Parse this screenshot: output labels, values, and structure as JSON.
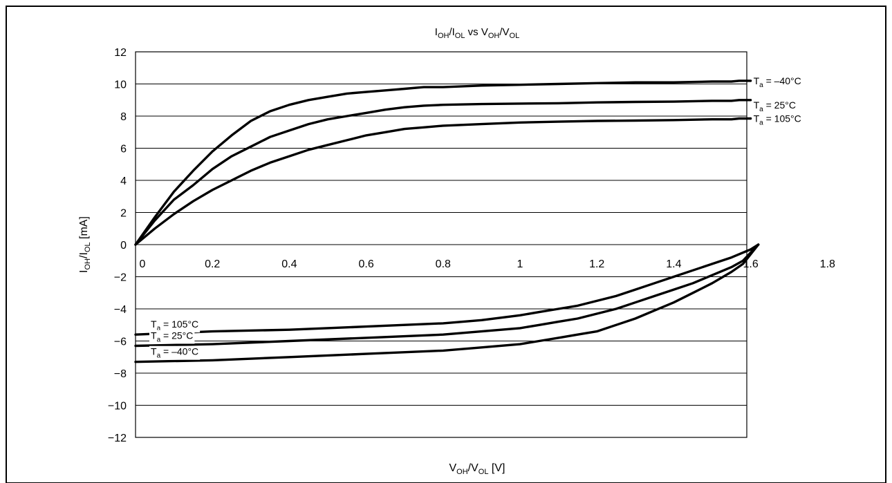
{
  "chart_data": {
    "type": "line",
    "title": {
      "base1": "I",
      "sub1": "OH",
      "mid1": "/I",
      "sub2": "OL",
      "mid2": " vs V",
      "sub3": "OH",
      "mid3": "/V",
      "sub4": "OL"
    },
    "xlabel": {
      "base1": "V",
      "sub1": "OH",
      "mid1": "/V",
      "sub2": "OL",
      "tail": " [V]"
    },
    "ylabel": {
      "base1": "I",
      "sub1": "OH",
      "mid1": "/I",
      "sub2": "OL",
      "tail": " [mA]"
    },
    "xlim": [
      0,
      1.8
    ],
    "ylim": [
      -12,
      12
    ],
    "x_ticks": [
      0,
      0.2,
      0.4,
      0.6,
      0.8,
      1.0,
      1.2,
      1.4,
      1.6,
      1.8
    ],
    "x_tick_labels": [
      "0",
      "0.2",
      "0.4",
      "0.6",
      "0.8",
      "1",
      "1.2",
      "1.4",
      "1.6",
      "1.8"
    ],
    "y_ticks": [
      12,
      10,
      8,
      6,
      4,
      2,
      0,
      -2,
      -4,
      -6,
      -8,
      -10,
      -12
    ],
    "y_tick_labels": [
      "12",
      "10",
      "8",
      "6",
      "4",
      "2",
      "0",
      "−2",
      "−4",
      "−6",
      "−8",
      "−10",
      "−12"
    ],
    "grid": true,
    "series": [
      {
        "name": {
          "base": "T",
          "sub": "a",
          "tail": " = –40°C"
        },
        "branch": "IOH",
        "x": [
          0,
          0.05,
          0.1,
          0.15,
          0.2,
          0.25,
          0.3,
          0.35,
          0.4,
          0.45,
          0.5,
          0.55,
          0.6,
          0.65,
          0.7,
          0.75,
          0.8,
          0.9,
          1.0,
          1.1,
          1.2,
          1.3,
          1.4,
          1.5,
          1.55,
          1.57,
          1.6
        ],
        "y": [
          0,
          1.7,
          3.3,
          4.6,
          5.8,
          6.8,
          7.7,
          8.3,
          8.7,
          9.0,
          9.2,
          9.4,
          9.5,
          9.6,
          9.7,
          9.8,
          9.8,
          9.9,
          9.95,
          10.0,
          10.05,
          10.1,
          10.1,
          10.15,
          10.15,
          10.2,
          10.2
        ]
      },
      {
        "name": {
          "base": "T",
          "sub": "a",
          "tail": " = 25°C"
        },
        "branch": "IOH",
        "x": [
          0,
          0.05,
          0.1,
          0.15,
          0.2,
          0.25,
          0.3,
          0.35,
          0.4,
          0.45,
          0.5,
          0.55,
          0.6,
          0.65,
          0.7,
          0.75,
          0.8,
          0.9,
          1.0,
          1.1,
          1.2,
          1.3,
          1.4,
          1.5,
          1.55,
          1.57,
          1.6
        ],
        "y": [
          0,
          1.5,
          2.8,
          3.7,
          4.7,
          5.5,
          6.1,
          6.7,
          7.1,
          7.5,
          7.8,
          8.0,
          8.2,
          8.4,
          8.55,
          8.65,
          8.7,
          8.75,
          8.78,
          8.8,
          8.85,
          8.88,
          8.9,
          8.95,
          8.95,
          9.0,
          9.0
        ]
      },
      {
        "name": {
          "base": "T",
          "sub": "a",
          "tail": " = 105°C"
        },
        "branch": "IOH",
        "x": [
          0,
          0.05,
          0.1,
          0.15,
          0.2,
          0.25,
          0.3,
          0.35,
          0.4,
          0.45,
          0.5,
          0.55,
          0.6,
          0.65,
          0.7,
          0.75,
          0.8,
          0.9,
          1.0,
          1.1,
          1.2,
          1.3,
          1.4,
          1.5,
          1.55,
          1.57,
          1.6
        ],
        "y": [
          0,
          1.0,
          1.9,
          2.7,
          3.4,
          4.0,
          4.6,
          5.1,
          5.5,
          5.9,
          6.2,
          6.5,
          6.8,
          7.0,
          7.2,
          7.3,
          7.4,
          7.5,
          7.6,
          7.65,
          7.7,
          7.72,
          7.75,
          7.8,
          7.8,
          7.85,
          7.85
        ]
      },
      {
        "name": {
          "base": "T",
          "sub": "a",
          "tail": " = –40°C"
        },
        "branch": "IOL",
        "x": [
          0,
          0.2,
          0.4,
          0.6,
          0.8,
          0.9,
          1.0,
          1.05,
          1.1,
          1.15,
          1.2,
          1.25,
          1.3,
          1.35,
          1.4,
          1.45,
          1.5,
          1.55,
          1.58,
          1.6,
          1.62
        ],
        "y": [
          -7.3,
          -7.2,
          -7.0,
          -6.8,
          -6.6,
          -6.4,
          -6.2,
          -6.0,
          -5.8,
          -5.6,
          -5.4,
          -5.0,
          -4.6,
          -4.1,
          -3.6,
          -3.0,
          -2.4,
          -1.7,
          -1.2,
          -0.6,
          0
        ]
      },
      {
        "name": {
          "base": "T",
          "sub": "a",
          "tail": " = 25°C"
        },
        "branch": "IOL",
        "x": [
          0,
          0.2,
          0.4,
          0.6,
          0.8,
          0.9,
          1.0,
          1.05,
          1.1,
          1.15,
          1.2,
          1.25,
          1.3,
          1.35,
          1.4,
          1.45,
          1.5,
          1.55,
          1.58,
          1.6,
          1.62
        ],
        "y": [
          -6.3,
          -6.2,
          -6.0,
          -5.8,
          -5.6,
          -5.4,
          -5.2,
          -5.0,
          -4.8,
          -4.6,
          -4.3,
          -4.0,
          -3.6,
          -3.2,
          -2.8,
          -2.4,
          -1.9,
          -1.4,
          -1.0,
          -0.5,
          0
        ]
      },
      {
        "name": {
          "base": "T",
          "sub": "a",
          "tail": " = 105°C"
        },
        "branch": "IOL",
        "x": [
          0,
          0.2,
          0.4,
          0.6,
          0.8,
          0.9,
          1.0,
          1.05,
          1.1,
          1.15,
          1.2,
          1.25,
          1.3,
          1.35,
          1.4,
          1.45,
          1.5,
          1.55,
          1.58,
          1.6,
          1.62
        ],
        "y": [
          -5.6,
          -5.4,
          -5.3,
          -5.1,
          -4.9,
          -4.7,
          -4.4,
          -4.2,
          -4.0,
          -3.8,
          -3.5,
          -3.2,
          -2.8,
          -2.4,
          -2.0,
          -1.6,
          -1.2,
          -0.8,
          -0.5,
          -0.3,
          0
        ]
      }
    ],
    "annotations": [
      {
        "side": "right",
        "series": 0
      },
      {
        "side": "right",
        "series": 1
      },
      {
        "side": "right",
        "series": 2
      },
      {
        "side": "left",
        "series": 5
      },
      {
        "side": "left",
        "series": 4
      },
      {
        "side": "left",
        "series": 3
      }
    ]
  }
}
